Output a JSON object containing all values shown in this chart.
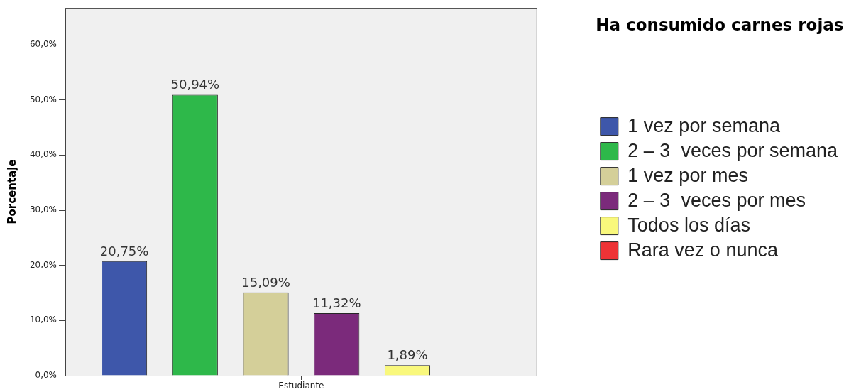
{
  "chart_data": {
    "type": "bar",
    "ylabel": "Porcentaje",
    "legend_title": "Ha consumido carnes rojas",
    "legend": "right",
    "categories": [
      "Estudiante"
    ],
    "series": [
      {
        "name": "1 vez por semana",
        "color": "#3e57aa",
        "values": [
          20.75
        ],
        "value_labels": [
          "20,75%"
        ]
      },
      {
        "name": "2 – 3  veces por semana",
        "color": "#2eb84a",
        "values": [
          50.94
        ],
        "value_labels": [
          "50,94%"
        ]
      },
      {
        "name": "1 vez por mes",
        "color": "#d4cf99",
        "values": [
          15.09
        ],
        "value_labels": [
          "15,09%"
        ]
      },
      {
        "name": "2 – 3  veces por mes",
        "color": "#7b2a7b",
        "values": [
          11.32
        ],
        "value_labels": [
          "11,32%"
        ]
      },
      {
        "name": "Todos los días",
        "color": "#f9f87c",
        "values": [
          1.89
        ],
        "value_labels": [
          "1,89%"
        ]
      },
      {
        "name": "Rara vez o nunca",
        "color": "#ee3336",
        "values": [
          null
        ],
        "value_labels": [
          null
        ]
      }
    ],
    "ylim": [
      0,
      66.7
    ],
    "yticks": [
      {
        "value": 0,
        "label": "0,0%"
      },
      {
        "value": 10,
        "label": "10,0%"
      },
      {
        "value": 20,
        "label": "20,0%"
      },
      {
        "value": 30,
        "label": "30,0%"
      },
      {
        "value": 40,
        "label": "40,0%"
      },
      {
        "value": 50,
        "label": "50,0%"
      },
      {
        "value": 60,
        "label": "60,0%"
      }
    ]
  }
}
